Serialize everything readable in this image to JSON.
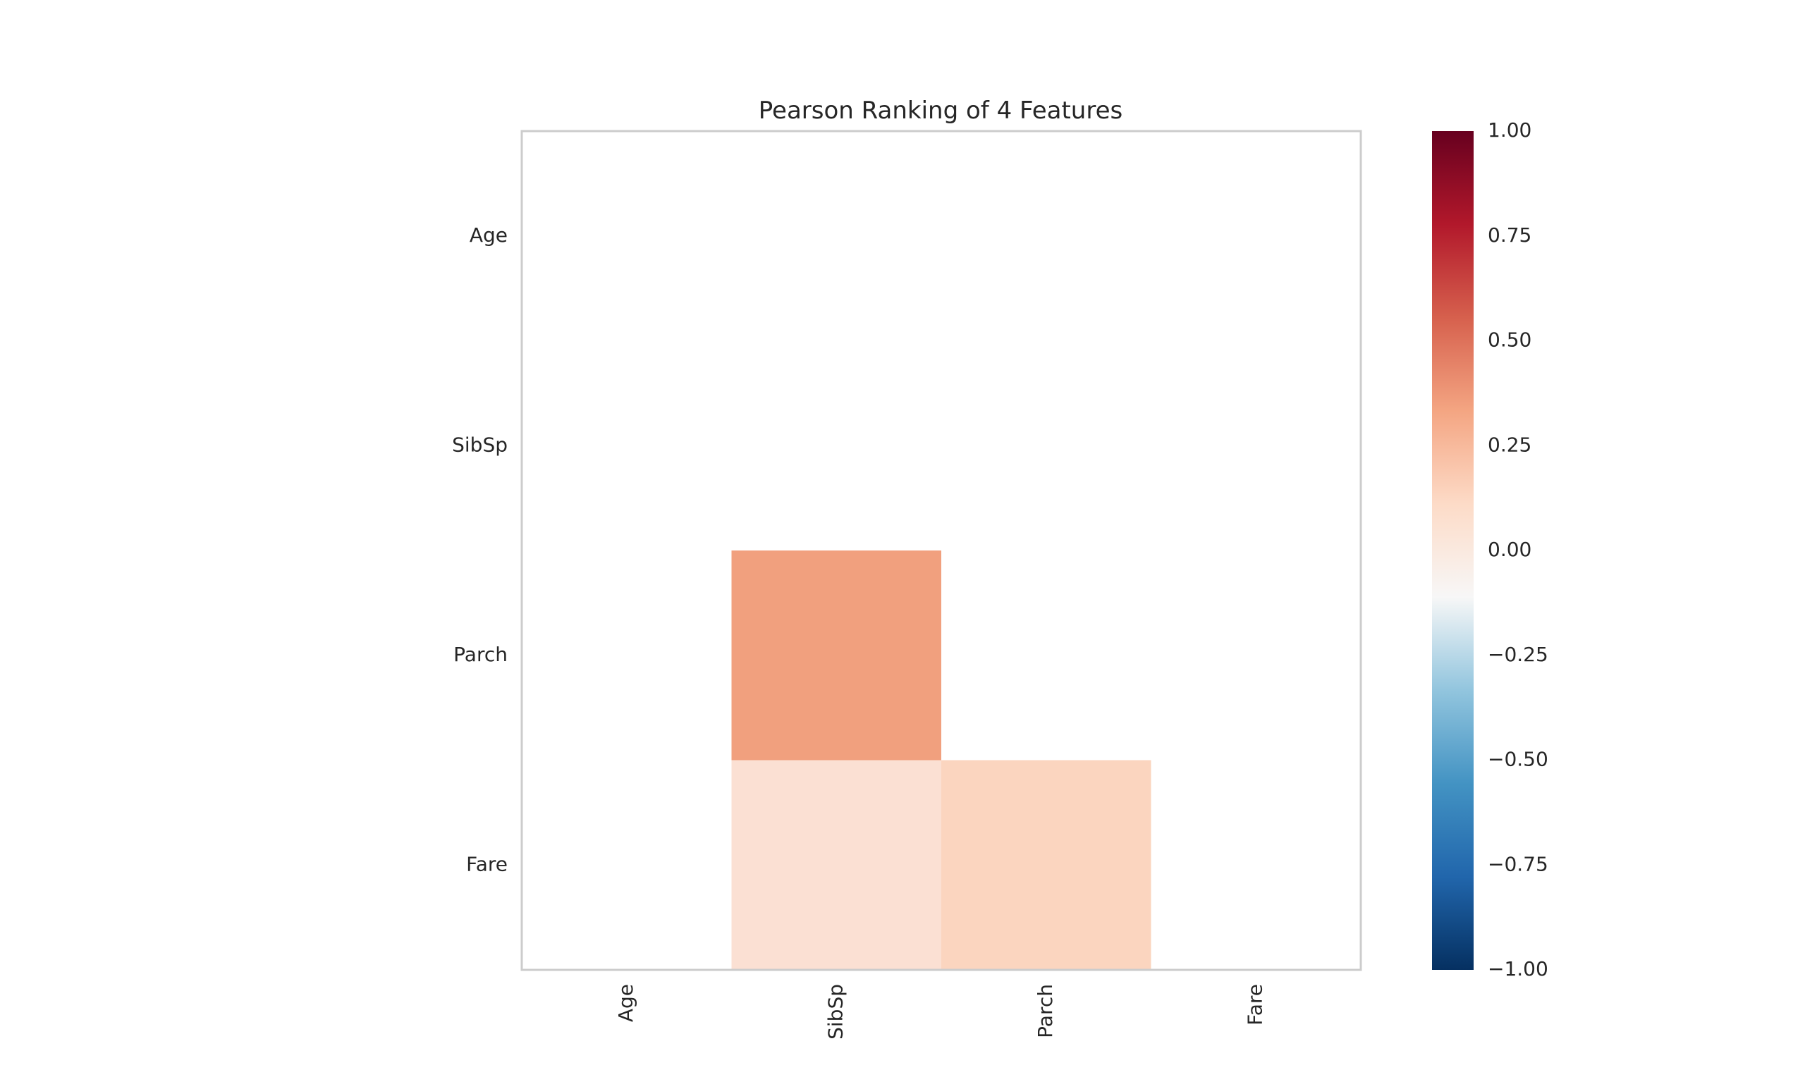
{
  "chart_data": {
    "type": "heatmap",
    "title": "Pearson Ranking of 4 Features",
    "features": [
      "Age",
      "SibSp",
      "Parch",
      "Fare"
    ],
    "x_tick_labels": [
      "Age",
      "SibSp",
      "Parch",
      "Fare"
    ],
    "y_tick_labels": [
      "Age",
      "SibSp",
      "Parch",
      "Fare"
    ],
    "lower_triangle_shown": true,
    "cells": [
      {
        "row": "Parch",
        "col": "SibSp",
        "value": 0.41,
        "color": "#f1a07e"
      },
      {
        "row": "Fare",
        "col": "SibSp",
        "value": 0.16,
        "color": "#fbe0d3"
      },
      {
        "row": "Fare",
        "col": "Parch",
        "value": 0.22,
        "color": "#fbd5bf"
      }
    ],
    "colorbar": {
      "min": -1.0,
      "max": 1.0,
      "ticks": [
        "1.00",
        "0.75",
        "0.50",
        "0.25",
        "0.00",
        "−0.25",
        "−0.50",
        "−0.75",
        "−1.00"
      ],
      "colormap": "RdBu_r",
      "stops": [
        "#053061",
        "#2166ac",
        "#4393c3",
        "#92c5de",
        "#f7f7f7",
        "#fddbc7",
        "#f4a582",
        "#d6604d",
        "#b2182b",
        "#67001f"
      ]
    },
    "frame_color": "#cccccc",
    "grid": false
  }
}
